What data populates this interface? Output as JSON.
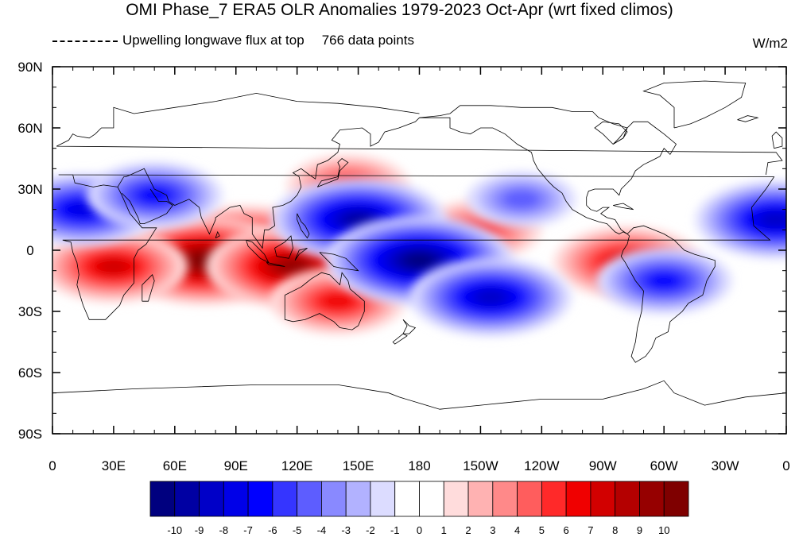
{
  "title": "OMI Phase_7 ERA5 OLR Anomalies 1979-2023 Oct-Apr (wrt fixed climos)",
  "legend_line": "Upwelling longwave flux at top",
  "data_points": "766 data points",
  "units": "W/m2",
  "chart_data": {
    "type": "heatmap",
    "title": "OMI Phase_7 ERA5 OLR Anomalies 1979-2023 Oct-Apr (wrt fixed climos)",
    "units": "W/m2",
    "x_ticks": [
      "0",
      "30E",
      "60E",
      "90E",
      "120E",
      "150E",
      "180",
      "150W",
      "120W",
      "90W",
      "60W",
      "30W",
      "0"
    ],
    "y_ticks": [
      "90N",
      "60N",
      "30N",
      "0",
      "30S",
      "60S",
      "90S"
    ],
    "lon_range": [
      0,
      360
    ],
    "lat_range": [
      -90,
      90
    ],
    "colorbar_levels": [
      "-10",
      "-9",
      "-8",
      "-7",
      "-6",
      "-5",
      "-4",
      "-3",
      "-2",
      "-1",
      "0",
      "1",
      "2",
      "3",
      "4",
      "5",
      "6",
      "7",
      "8",
      "9",
      "10"
    ],
    "colorbar_colors": [
      "#00007f",
      "#0000a3",
      "#0000c8",
      "#0000e8",
      "#0000ff",
      "#3535ff",
      "#5d5dff",
      "#8989ff",
      "#b2b2ff",
      "#dcdcff",
      "#ffffff",
      "#ffffff",
      "#ffdcdc",
      "#ffb2b2",
      "#ff8989",
      "#ff5d5d",
      "#ff2929",
      "#f00000",
      "#d20000",
      "#b40000",
      "#960000",
      "#7f0000"
    ],
    "anomaly_features": [
      {
        "lon": 95,
        "lat": 0,
        "value": 10
      },
      {
        "lon": 75,
        "lat": -5,
        "value": 10
      },
      {
        "lon": 118,
        "lat": -8,
        "value": 9
      },
      {
        "lon": 30,
        "lat": -8,
        "value": 7
      },
      {
        "lon": 140,
        "lat": -25,
        "value": 6
      },
      {
        "lon": 145,
        "lat": 32,
        "value": 5
      },
      {
        "lon": 210,
        "lat": 10,
        "value": 5
      },
      {
        "lon": 282,
        "lat": -6,
        "value": 7
      },
      {
        "lon": 15,
        "lat": 20,
        "value": -7
      },
      {
        "lon": 50,
        "lat": 27,
        "value": -6
      },
      {
        "lon": 150,
        "lat": 15,
        "value": -9
      },
      {
        "lon": 180,
        "lat": -5,
        "value": -10
      },
      {
        "lon": 215,
        "lat": -23,
        "value": -8
      },
      {
        "lon": 230,
        "lat": 25,
        "value": -4
      },
      {
        "lon": 300,
        "lat": -15,
        "value": -6
      },
      {
        "lon": 355,
        "lat": 15,
        "value": -8
      }
    ]
  },
  "colors": {
    "ocean_bg": "#ffffff",
    "coast": "#000000"
  }
}
